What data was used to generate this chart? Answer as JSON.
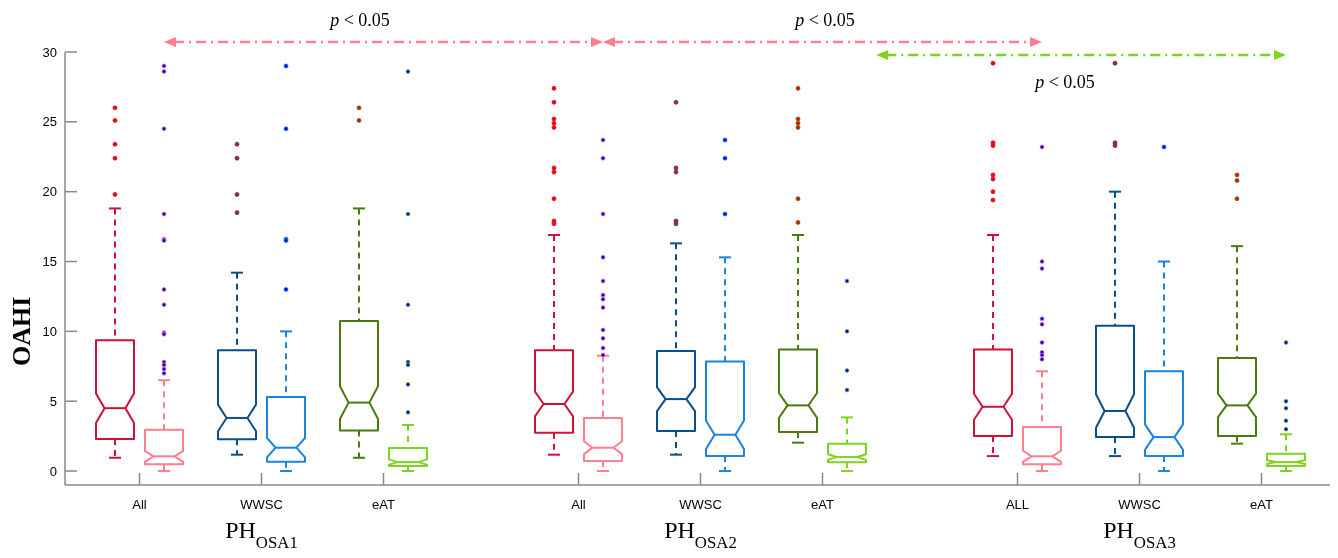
{
  "chart_data": {
    "type": "box",
    "ylabel": "OAHI",
    "categories": [
      "All",
      "WWSC",
      "eAT",
      "All",
      "WWSC",
      "eAT",
      "ALL",
      "WWSC",
      "eAT"
    ],
    "ylim": [
      -1,
      30
    ],
    "yticks": [
      0,
      5,
      10,
      15,
      20,
      25,
      30
    ],
    "series": [
      {
        "color": "#ff0000",
        "colors": [
          "#d0103a",
          "#0b4f8a",
          "#4b7a0e",
          "#d0103a",
          "#0b4f8a",
          "#4b7a0e",
          "#d0103a",
          "#0b4f8a",
          "#4b7a0e"
        ],
        "boxes": [
          {
            "low": 0.95,
            "q1": 2.3,
            "median": 4.5,
            "q3": 9.36,
            "high": 18.8,
            "outliers": [
              26.0,
              25.1,
              23.4,
              22.4,
              19.8
            ]
          },
          {
            "low": 1.17,
            "q1": 2.27,
            "median": 3.8,
            "q3": 8.64,
            "high": 14.2,
            "outliers": [
              23.4,
              22.4,
              19.8,
              18.5
            ]
          },
          {
            "low": 0.95,
            "q1": 2.9,
            "median": 4.9,
            "q3": 10.74,
            "high": 18.8,
            "outliers": [
              26.0,
              25.1
            ]
          },
          {
            "low": 1.17,
            "q1": 2.74,
            "median": 4.8,
            "q3": 8.64,
            "high": 16.9,
            "outliers": [
              27.4,
              26.4,
              25.2,
              24.9,
              24.6,
              21.7,
              21.4,
              19.5,
              17.9,
              17.7
            ]
          },
          {
            "low": 1.17,
            "q1": 2.86,
            "median": 5.15,
            "q3": 8.6,
            "high": 16.3,
            "outliers": [
              26.4,
              21.7,
              21.4,
              17.9,
              17.7
            ]
          },
          {
            "low": 2.03,
            "q1": 2.8,
            "median": 4.7,
            "q3": 8.7,
            "high": 16.9,
            "outliers": [
              27.4,
              25.2,
              24.9,
              24.6,
              19.5,
              17.8
            ]
          },
          {
            "low": 1.07,
            "q1": 2.5,
            "median": 4.6,
            "q3": 8.7,
            "high": 16.9,
            "outliers": [
              29.2,
              23.5,
              23.3,
              21.2,
              20.9,
              20.0,
              19.4
            ]
          },
          {
            "low": 1.07,
            "q1": 2.43,
            "median": 4.3,
            "q3": 10.4,
            "high": 20.0,
            "outliers": [
              29.2,
              23.5,
              23.3
            ]
          },
          {
            "low": 1.96,
            "q1": 2.5,
            "median": 4.7,
            "q3": 8.1,
            "high": 16.1,
            "outliers": [
              21.2,
              20.8,
              19.5
            ]
          }
        ]
      },
      {
        "color": "#0000ff",
        "colors": [
          "#ff7f8e",
          "#1a83e0",
          "#7ed321",
          "#ff7f8e",
          "#1a83e0",
          "#7ed321",
          "#ff7f8e",
          "#1a83e0",
          "#7ed321"
        ],
        "boxes": [
          {
            "low": 0,
            "q1": 0.48,
            "median": 1.05,
            "q3": 2.96,
            "high": 6.5,
            "outliers": [
              29.0,
              28.6,
              24.5,
              18.4,
              16.6,
              16.5,
              13.0,
              11.9,
              9.9,
              9.8,
              7.8,
              7.6,
              7.3,
              7.0
            ]
          },
          {
            "low": 0,
            "q1": 0.67,
            "median": 1.67,
            "q3": 5.3,
            "high": 10.0,
            "outliers": [
              29.0,
              24.5,
              16.6,
              16.5,
              13.0
            ]
          },
          {
            "low": 0,
            "q1": 0.36,
            "median": 0.64,
            "q3": 1.65,
            "high": 3.3,
            "outliers": [
              28.6,
              18.4,
              11.9,
              7.8,
              7.6,
              6.2,
              4.2
            ]
          },
          {
            "low": 0,
            "q1": 0.72,
            "median": 1.67,
            "q3": 3.8,
            "high": 8.26,
            "outliers": [
              23.7,
              22.4,
              18.4,
              15.3,
              13.6,
              12.6,
              12.3,
              11.7,
              10.1,
              9.5,
              8.8,
              8.3
            ]
          },
          {
            "low": 0,
            "q1": 1.07,
            "median": 2.6,
            "q3": 7.85,
            "high": 15.3,
            "outliers": [
              23.7,
              22.4,
              18.4
            ]
          },
          {
            "low": 0,
            "q1": 0.62,
            "median": 1.0,
            "q3": 1.96,
            "high": 3.84,
            "outliers": [
              13.6,
              10.0,
              7.2,
              5.8
            ]
          },
          {
            "low": 0,
            "q1": 0.48,
            "median": 1.05,
            "q3": 3.15,
            "high": 7.14,
            "outliers": [
              23.2,
              15.0,
              14.5,
              10.9,
              10.5,
              9.2,
              8.5,
              8.3,
              8.0
            ]
          },
          {
            "low": 0,
            "q1": 1.07,
            "median": 2.43,
            "q3": 7.14,
            "high": 15.0,
            "outliers": [
              23.2
            ]
          },
          {
            "low": 0,
            "q1": 0.36,
            "median": 0.64,
            "q3": 1.24,
            "high": 2.63,
            "outliers": [
              9.2,
              5.0,
              4.5,
              3.6,
              3.0
            ]
          }
        ]
      }
    ],
    "annotations": [
      "p < 0.05",
      "p < 0.05",
      "p < 0.05",
      "PH$_{OSA1}$",
      "PH$_{OSA2}$",
      "PH$_{OSA3}$"
    ],
    "grid": false
  }
}
